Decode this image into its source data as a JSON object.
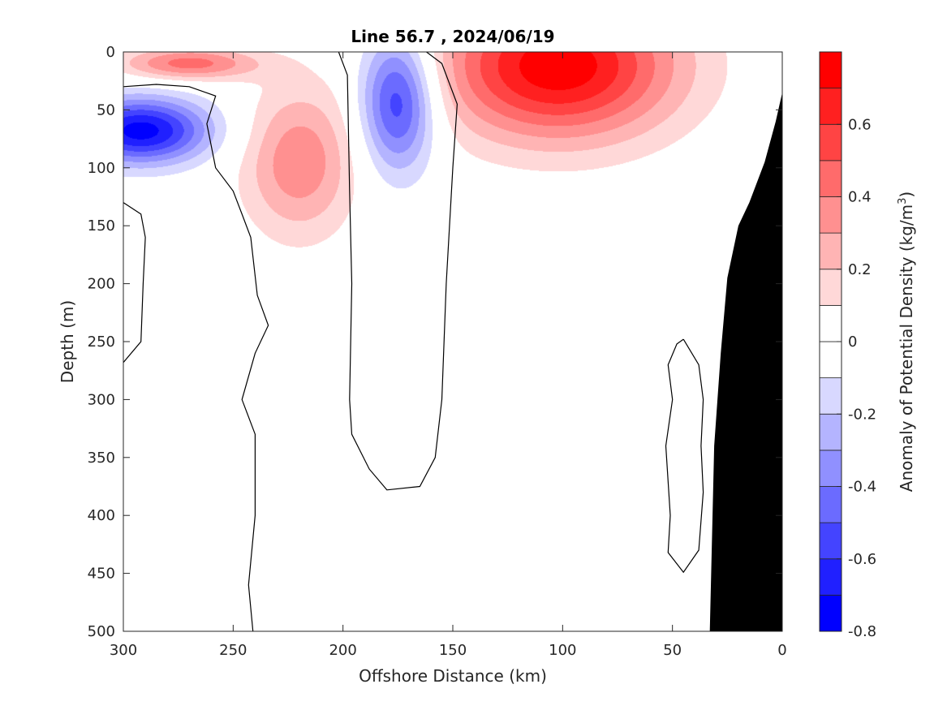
{
  "chart_data": {
    "type": "heatmap",
    "subtype": "filled-contour-section",
    "title": "Line 56.7 , 2024/06/19",
    "xlabel": "Offshore Distance (km)",
    "ylabel": "Depth (m)",
    "colorbar_label": "Anomaly of Potential Density (kg/m",
    "colorbar_label_superscript": "3",
    "colorbar_label_close": ")",
    "xlim": [
      300,
      0
    ],
    "x_reversed": true,
    "ylim": [
      0,
      500
    ],
    "y_reversed": true,
    "x_ticks": [
      300,
      250,
      200,
      150,
      100,
      50,
      0
    ],
    "x_tick_labels": [
      "300",
      "250",
      "200",
      "150",
      "100",
      "50",
      "0"
    ],
    "y_ticks": [
      0,
      50,
      100,
      150,
      200,
      250,
      300,
      350,
      400,
      450,
      500
    ],
    "y_tick_labels": [
      "0",
      "50",
      "100",
      "150",
      "200",
      "250",
      "300",
      "350",
      "400",
      "450",
      "500"
    ],
    "clim": [
      -0.8,
      0.8
    ],
    "color_levels": [
      -0.8,
      -0.7,
      -0.6,
      -0.5,
      -0.4,
      -0.3,
      -0.2,
      -0.1,
      0,
      0.1,
      0.2,
      0.3,
      0.4,
      0.5,
      0.6,
      0.7,
      0.8
    ],
    "color_bins": [
      "#0000ff",
      "#2020ff",
      "#4444ff",
      "#6b6bff",
      "#9090ff",
      "#b4b4ff",
      "#d8d8ff",
      "#ffffff",
      "#ffffff",
      "#ffd8d8",
      "#ffb4b4",
      "#ff9090",
      "#ff6b6b",
      "#ff4444",
      "#2020ff",
      "#ff0000"
    ],
    "colorbar_ticks": [
      -0.8,
      -0.6,
      -0.4,
      -0.2,
      0,
      0.2,
      0.4,
      0.6
    ],
    "colorbar_tick_labels": [
      "-0.8",
      "-0.6",
      "-0.4",
      "-0.2",
      "0",
      "0.2",
      "0.4",
      "0.6"
    ],
    "bathymetry_color": "#000000",
    "bathymetry": [
      [
        0,
        35
      ],
      [
        3,
        60
      ],
      [
        8,
        95
      ],
      [
        15,
        130
      ],
      [
        20,
        150
      ],
      [
        25,
        195
      ],
      [
        28,
        260
      ],
      [
        31,
        340
      ],
      [
        33,
        500
      ]
    ],
    "features": [
      {
        "sign": "negative",
        "x": 292,
        "depth": 68,
        "peak": -0.75,
        "sx": 22,
        "sz": 20
      },
      {
        "sign": "negative",
        "x": 175,
        "depth": 42,
        "peak": -0.62,
        "sx": 12,
        "sz": 42
      },
      {
        "sign": "positive",
        "x": 102,
        "depth": 12,
        "peak": 0.78,
        "sx": 38,
        "sz": 45
      },
      {
        "sign": "positive",
        "x": 220,
        "depth": 95,
        "peak": 0.38,
        "sx": 18,
        "sz": 45
      },
      {
        "sign": "positive",
        "x": 270,
        "depth": 10,
        "peak": 0.45,
        "sx": 22,
        "sz": 10
      }
    ],
    "zero_contours": [
      [
        [
          300,
          30
        ],
        [
          285,
          28
        ],
        [
          270,
          30
        ],
        [
          258,
          38
        ],
        [
          262,
          62
        ],
        [
          258,
          100
        ],
        [
          250,
          120
        ],
        [
          246,
          140
        ],
        [
          242,
          160
        ],
        [
          239,
          210
        ],
        [
          234,
          236
        ],
        [
          240,
          260
        ],
        [
          246,
          300
        ],
        [
          240,
          330
        ],
        [
          240,
          400
        ],
        [
          243,
          460
        ],
        [
          241,
          500
        ]
      ],
      [
        [
          300,
          130
        ],
        [
          292,
          140
        ],
        [
          290,
          160
        ],
        [
          291,
          200
        ],
        [
          292,
          250
        ],
        [
          300,
          268
        ]
      ],
      [
        [
          202,
          0
        ],
        [
          198,
          20
        ],
        [
          197,
          120
        ],
        [
          196,
          200
        ],
        [
          197,
          300
        ],
        [
          196,
          330
        ],
        [
          188,
          360
        ],
        [
          180,
          378
        ],
        [
          165,
          375
        ],
        [
          158,
          350
        ],
        [
          155,
          300
        ],
        [
          153,
          200
        ],
        [
          150,
          100
        ],
        [
          148,
          45
        ],
        [
          155,
          10
        ],
        [
          162,
          0
        ]
      ],
      [
        [
          45,
          248
        ],
        [
          38,
          270
        ],
        [
          36,
          300
        ],
        [
          37,
          340
        ],
        [
          36,
          380
        ],
        [
          38,
          430
        ],
        [
          45,
          449
        ],
        [
          52,
          432
        ],
        [
          51,
          400
        ],
        [
          53,
          340
        ],
        [
          50,
          300
        ],
        [
          52,
          270
        ],
        [
          48,
          252
        ],
        [
          45,
          248
        ]
      ]
    ]
  }
}
